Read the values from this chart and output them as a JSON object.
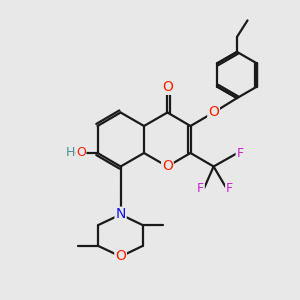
{
  "background_color": "#e8e8e8",
  "bond_color": "#1a1a1a",
  "bond_width": 1.6,
  "atom_colors": {
    "O": "#ff2200",
    "HO_label": "#4a9090",
    "N": "#1010ee",
    "F": "#cc22cc"
  },
  "figsize": [
    3.0,
    3.0
  ],
  "dpi": 100
}
